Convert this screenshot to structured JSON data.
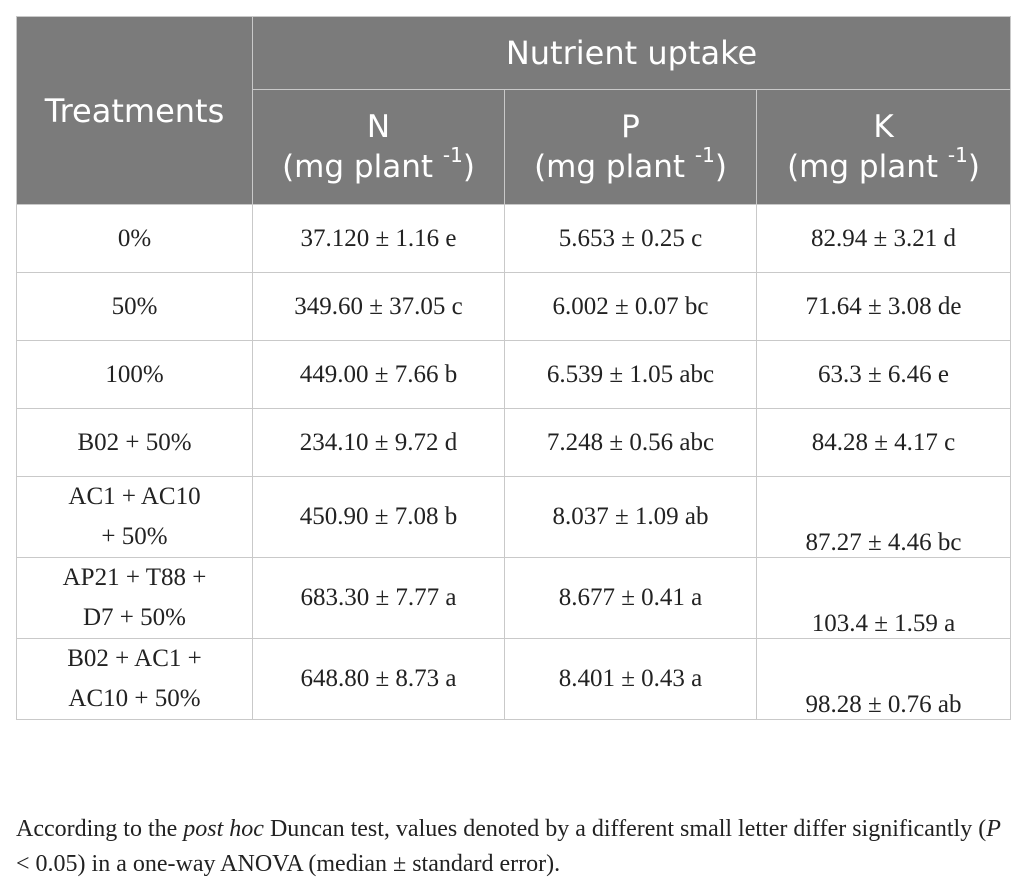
{
  "header": {
    "treatments": "Treatments",
    "group": "Nutrient uptake",
    "columns": [
      {
        "symbol": "N",
        "unit": "(mg plant ",
        "exp": "-1",
        "close": ")"
      },
      {
        "symbol": "P",
        "unit": "(mg plant ",
        "exp": "-1",
        "close": ")"
      },
      {
        "symbol": "K",
        "unit": "(mg plant ",
        "exp": "-1",
        "close": ")"
      }
    ]
  },
  "rows": [
    {
      "treatment": [
        "0%"
      ],
      "n": "37.120 ± 1.16 e",
      "p": "5.653 ± 0.25 c",
      "k": "82.94 ± 3.21 d"
    },
    {
      "treatment": [
        "50%"
      ],
      "n": "349.60 ± 37.05 c",
      "p": "6.002 ± 0.07 bc",
      "k": "71.64 ± 3.08 de"
    },
    {
      "treatment": [
        "100%"
      ],
      "n": "449.00 ± 7.66 b",
      "p": "6.539 ± 1.05 abc",
      "k": "63.3 ± 6.46 e"
    },
    {
      "treatment": [
        "B02 + 50%"
      ],
      "n": "234.10 ± 9.72 d",
      "p": "7.248 ± 0.56 abc",
      "k": "84.28 ± 4.17 c"
    },
    {
      "treatment": [
        "AC1 + AC10",
        "+ 50%"
      ],
      "n": "450.90 ± 7.08 b",
      "p": "8.037 ± 1.09 ab",
      "k": "87.27 ± 4.46 bc"
    },
    {
      "treatment": [
        "AP21 + T88 +",
        "D7 + 50%"
      ],
      "n": "683.30 ± 7.77 a",
      "p": "8.677 ± 0.41 a",
      "k": "103.4 ± 1.59 a"
    },
    {
      "treatment": [
        "B02 + AC1 +",
        "AC10 + 50%"
      ],
      "n": "648.80 ± 8.73 a",
      "p": "8.401 ± 0.43 a",
      "k": "98.28 ± 0.76 ab"
    }
  ],
  "footnote": {
    "part1": "According to the ",
    "italic1": "post hoc",
    "part2": " Duncan test, values denoted by a different small letter differ significantly (",
    "italic2": "P",
    "part3": " < 0.05) in a one-way ANOVA (median ± standard error)."
  }
}
